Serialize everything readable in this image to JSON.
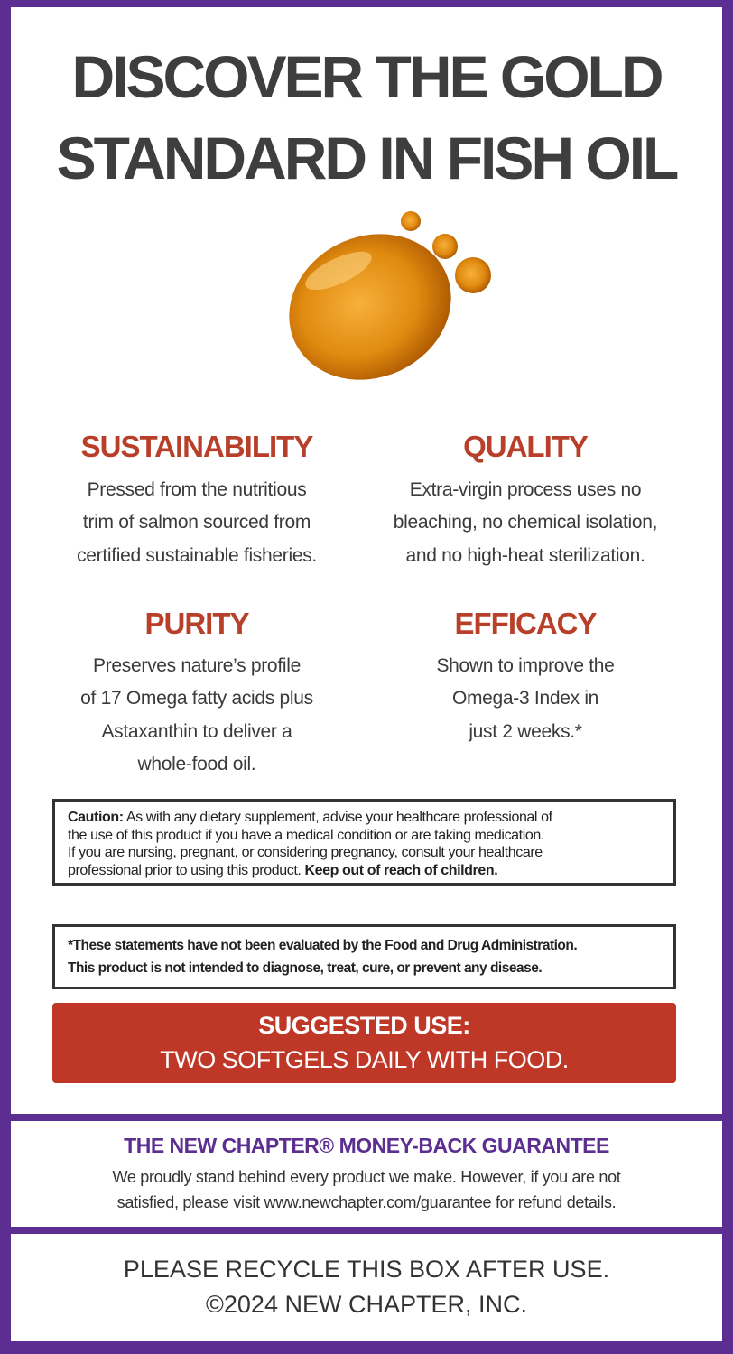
{
  "headline": [
    "DISCOVER THE GOLD",
    "STANDARD IN FISH OIL"
  ],
  "image": {
    "icon": "oil-drop-icon",
    "colors": {
      "oil": "#e08a10",
      "oil_dark": "#b55a00"
    }
  },
  "features": [
    {
      "title": "SUSTAINABILITY",
      "lines": [
        "Pressed from the nutritious",
        "trim of salmon sourced from",
        "certified sustainable fisheries."
      ]
    },
    {
      "title": "QUALITY",
      "lines": [
        "Extra-virgin process uses no",
        "bleaching, no chemical isolation,",
        "and no high-heat sterilization."
      ]
    },
    {
      "title": "PURITY",
      "lines": [
        "Preserves nature’s profile",
        "of 17 Omega fatty acids plus",
        "Astaxanthin to deliver a",
        "whole-food oil."
      ]
    },
    {
      "title": "EFFICACY",
      "lines": [
        "Shown to improve the",
        "Omega-3 Index in",
        "just 2 weeks.*"
      ]
    }
  ],
  "caution": {
    "label": "Caution:",
    "line1": " As with any dietary supplement, advise your healthcare professional of",
    "line2": "the use of this product if you have a medical condition or are taking medication.",
    "line3": "If you are nursing, pregnant, or considering pregnancy, consult your healthcare",
    "line4": "professional prior to using this product. ",
    "bold_end": "Keep out of reach of children."
  },
  "disclaimer": [
    "*These statements have not been evaluated by the Food and Drug Administration.",
    "This product is not intended to diagnose, treat, cure, or prevent any disease."
  ],
  "suggested_use": {
    "label": "SUGGESTED USE:",
    "text": "TWO SOFTGELS DAILY WITH FOOD."
  },
  "guarantee": {
    "title": "THE NEW CHAPTER® MONEY-BACK GUARANTEE",
    "lines": [
      "We proudly stand behind every product we make. However, if you are not",
      "satisfied, please visit www.newchapter.com/guarantee for refund details."
    ]
  },
  "footer": [
    "PLEASE RECYCLE THIS BOX AFTER USE.",
    "©2024 NEW CHAPTER, INC."
  ],
  "colors": {
    "border": "#5c2e91",
    "accent_red": "#be3727",
    "heading_red": "#b8402a",
    "text": "#3e3e3e"
  }
}
